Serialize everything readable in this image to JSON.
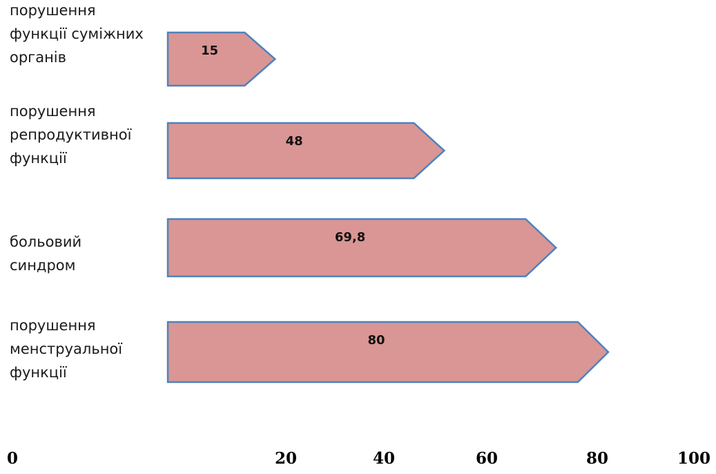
{
  "chart_data": {
    "type": "bar",
    "orientation": "horizontal",
    "categories": [
      [
        "порушення",
        "функції суміжних",
        "органів"
      ],
      [
        "порушення",
        "репродуктивної",
        "функції"
      ],
      [
        "больовий",
        "синдром"
      ],
      [
        "порушення",
        "менструальної",
        "функції"
      ]
    ],
    "values": [
      15,
      48,
      69.8,
      80
    ],
    "value_labels": [
      "15",
      "48",
      "69,8",
      "80"
    ],
    "x_ticks": [
      "0",
      "20",
      "40",
      "60",
      "80",
      "100"
    ],
    "xlim": [
      0,
      100
    ],
    "grid": false,
    "legend": "none",
    "bar_shape": "pentagon-arrow",
    "colors": {
      "bar_fill": "#d99694",
      "bar_stroke": "#4f81bd"
    }
  }
}
